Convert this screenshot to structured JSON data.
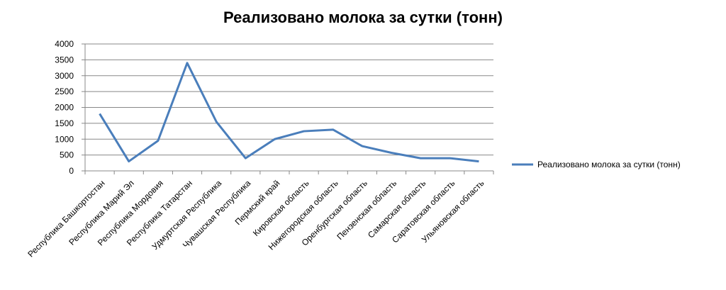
{
  "chart_data": {
    "type": "line",
    "title": "Реализовано молока за сутки (тонн)",
    "categories": [
      "Республика Башкортостан",
      "Республика Марий Эл",
      "Республика Мордовия",
      "Республика Татарстан",
      "Удмуртская Республика",
      "Чувашская Республика",
      "Пермский край",
      "Кировская область",
      "Нижегородская область",
      "Оренбургская область",
      "Пензенская область",
      "Самарская область",
      "Саратовская область",
      "Ульяновская область"
    ],
    "series": [
      {
        "name": "Реализовано молока за сутки (тонн)",
        "color": "#4a7ebb",
        "values": [
          1800,
          300,
          950,
          3400,
          1550,
          400,
          1000,
          1250,
          1300,
          780,
          570,
          400,
          400,
          300
        ]
      }
    ],
    "ylim": [
      0,
      4000
    ],
    "yticks": [
      0,
      500,
      1000,
      1500,
      2000,
      2500,
      3000,
      3500,
      4000
    ],
    "grid": true,
    "legend": "right"
  }
}
